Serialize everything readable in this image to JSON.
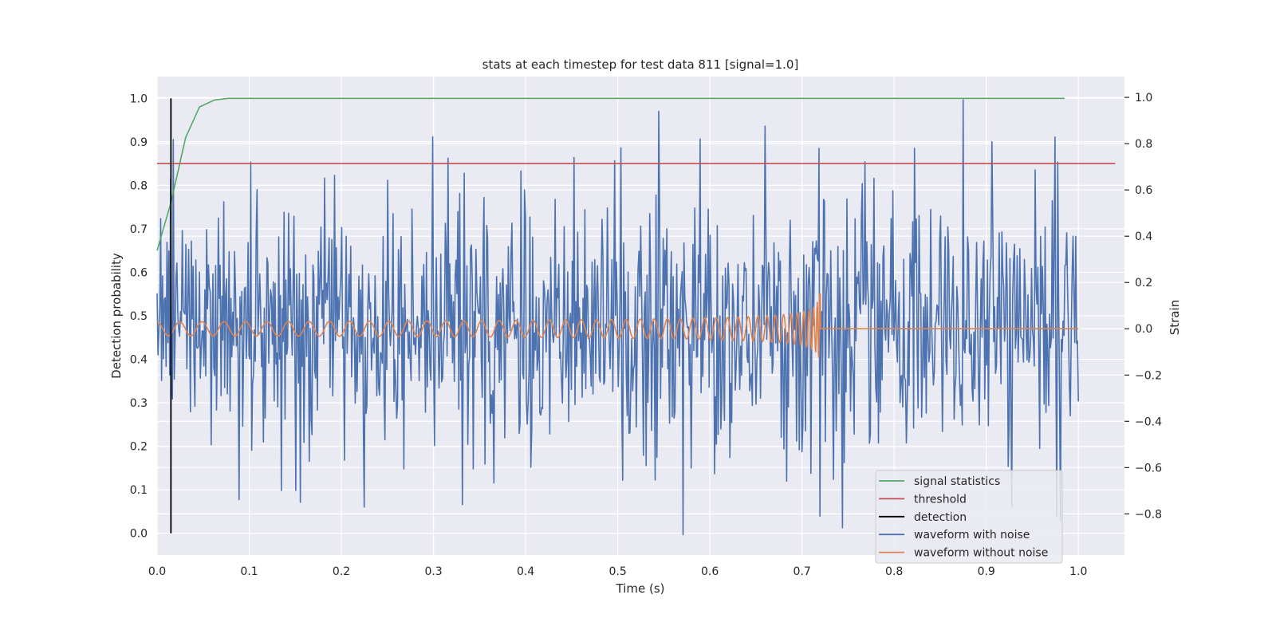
{
  "chart_data": {
    "type": "line",
    "title": "stats at each timestep for test data 811 [signal=1.0]",
    "xlabel": "Time (s)",
    "ylabel": "Detection probability",
    "y2label": "Strain",
    "xlim": [
      0.0,
      1.05
    ],
    "ylim": [
      -0.05,
      1.05
    ],
    "y2lim": [
      -0.978,
      1.09
    ],
    "x_ticks": [
      "0.0",
      "0.1",
      "0.2",
      "0.3",
      "0.4",
      "0.5",
      "0.6",
      "0.7",
      "0.8",
      "0.9",
      "1.0"
    ],
    "y_ticks": [
      "0.0",
      "0.1",
      "0.2",
      "0.3",
      "0.4",
      "0.5",
      "0.6",
      "0.7",
      "0.8",
      "0.9",
      "1.0"
    ],
    "y2_ticks": [
      "−0.8",
      "−0.6",
      "−0.4",
      "−0.2",
      "0.0",
      "0.2",
      "0.4",
      "0.6",
      "0.8",
      "1.0"
    ],
    "grid": true,
    "legend_position": "lower-right",
    "colors": {
      "signal_statistics": "#55a868",
      "threshold": "#c44e52",
      "detection": "#000000",
      "waveform_with_noise": "#4c72b0",
      "waveform_without_noise": "#dd8452",
      "plot_background": "#eaeaf2"
    },
    "legend": [
      {
        "label": "signal statistics",
        "color": "#55a868"
      },
      {
        "label": "threshold",
        "color": "#c44e52"
      },
      {
        "label": "detection",
        "color": "#000000"
      },
      {
        "label": "waveform with noise",
        "color": "#4c72b0"
      },
      {
        "label": "waveform without noise",
        "color": "#dd8452"
      }
    ],
    "signal_statistics": {
      "x": [
        0.0,
        0.015,
        0.031,
        0.046,
        0.062,
        0.077,
        0.2,
        0.4,
        0.6,
        0.8,
        0.985
      ],
      "y": [
        0.65,
        0.76,
        0.91,
        0.98,
        0.996,
        1.0,
        1.0,
        1.0,
        1.0,
        1.0,
        1.0
      ]
    },
    "threshold": {
      "y": 0.85,
      "x_range": [
        0.0,
        1.04
      ]
    },
    "detection": {
      "x": 0.015,
      "y_range": [
        0.0,
        1.0
      ]
    },
    "waveform_with_noise": {
      "x_range": [
        0.0,
        1.0
      ],
      "strain_range": [
        -0.88,
        0.99
      ],
      "peaks": [
        {
          "x": 0.015,
          "y": 0.65
        },
        {
          "x": 0.102,
          "y": 0.72
        },
        {
          "x": 0.299,
          "y": 0.83
        },
        {
          "x": 0.589,
          "y": 0.82
        },
        {
          "x": 0.718,
          "y": 0.78
        },
        {
          "x": 0.822,
          "y": 0.78
        },
        {
          "x": 0.875,
          "y": 0.99
        },
        {
          "x": 0.978,
          "y": 0.72
        }
      ],
      "troughs": [
        {
          "x": 0.155,
          "y": -0.75
        },
        {
          "x": 0.225,
          "y": -0.77
        },
        {
          "x": 0.331,
          "y": -0.76
        },
        {
          "x": 0.571,
          "y": -0.89
        },
        {
          "x": 0.719,
          "y": -0.81
        },
        {
          "x": 0.98,
          "y": -0.83
        }
      ]
    },
    "waveform_without_noise": {
      "x_range": [
        0.0,
        1.0
      ],
      "merger_time": 0.72,
      "amplitude_start": 0.03,
      "amplitude_peak": 0.2,
      "post_merger_value": 0.0
    }
  }
}
